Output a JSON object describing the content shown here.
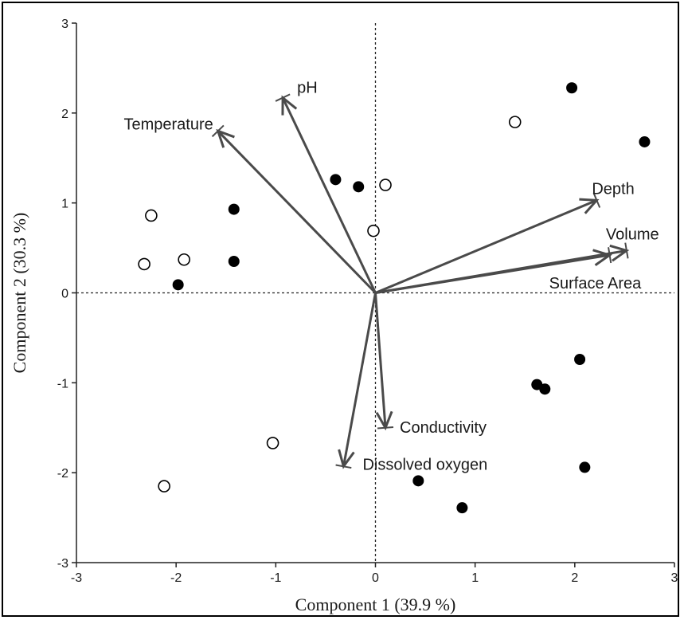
{
  "chart_data": {
    "type": "scatter",
    "title": "",
    "xlabel": "Component 1  (39.9 %)",
    "ylabel": "Component 2  (30.3 %)",
    "xlim": [
      -3,
      3
    ],
    "ylim": [
      -3,
      3
    ],
    "xticks": [
      "-3",
      "-2",
      "-1",
      "0",
      "1",
      "2",
      "3"
    ],
    "yticks": [
      "-3",
      "-2",
      "-1",
      "0",
      "1",
      "2",
      "3"
    ],
    "reference_lines": {
      "x": 0,
      "y": 0,
      "style": "dotted"
    },
    "colors": {
      "vector": "#4a4a4a",
      "point_filled": "#000000",
      "point_open_stroke": "#000000",
      "point_open_fill": "#ffffff"
    },
    "series": [
      {
        "marker": "filled",
        "points": [
          [
            1.97,
            2.28
          ],
          [
            2.7,
            1.68
          ],
          [
            -0.4,
            1.26
          ],
          [
            -0.17,
            1.18
          ],
          [
            -1.42,
            0.93
          ],
          [
            -1.42,
            0.35
          ],
          [
            -1.98,
            0.09
          ],
          [
            2.05,
            -0.74
          ],
          [
            1.62,
            -1.02
          ],
          [
            1.7,
            -1.07
          ],
          [
            2.1,
            -1.94
          ],
          [
            0.43,
            -2.09
          ],
          [
            0.87,
            -2.39
          ]
        ]
      },
      {
        "marker": "open",
        "points": [
          [
            1.4,
            1.9
          ],
          [
            0.1,
            1.2
          ],
          [
            -0.02,
            0.69
          ],
          [
            -2.25,
            0.86
          ],
          [
            -1.92,
            0.37
          ],
          [
            -2.32,
            0.32
          ],
          [
            -1.03,
            -1.67
          ],
          [
            -2.12,
            -2.15
          ]
        ]
      }
    ],
    "vectors": [
      {
        "label": "Temperature",
        "x": -1.58,
        "y": 1.8
      },
      {
        "label": "pH",
        "x": -0.93,
        "y": 2.17
      },
      {
        "label": "Depth",
        "x": 2.22,
        "y": 1.03
      },
      {
        "label": "Volume",
        "x": 2.52,
        "y": 0.47
      },
      {
        "label": "Surface Area",
        "x": 2.35,
        "y": 0.42
      },
      {
        "label": "Conductivity",
        "x": 0.1,
        "y": -1.5
      },
      {
        "label": "Dissolved oxygen",
        "x": -0.32,
        "y": -1.93
      }
    ]
  }
}
